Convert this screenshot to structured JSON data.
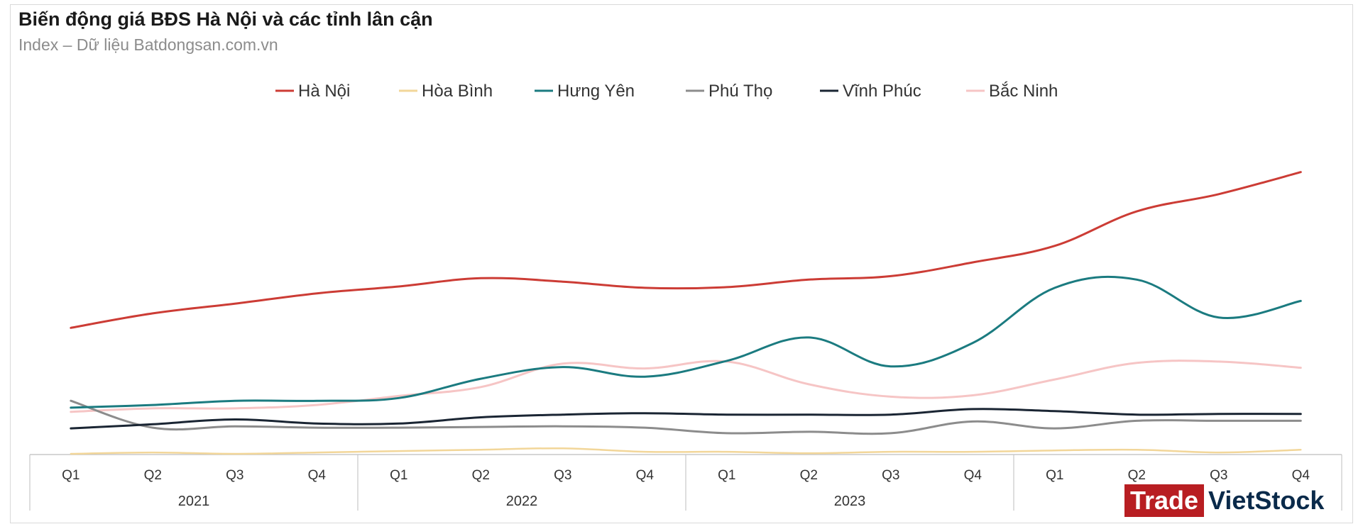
{
  "header": {
    "title": "Biến động giá BĐS Hà Nội và các tỉnh lân cận",
    "subtitle": "Index – Dữ liệu Batdongsan.com.vn"
  },
  "logo": {
    "part1": "Trade",
    "part2": "VietStock"
  },
  "chart_data": {
    "type": "line",
    "title": "Biến động giá BĐS Hà Nội và các tỉnh lân cận",
    "subtitle": "Index – Dữ liệu Batdongsan.com.vn",
    "legend_position": "top",
    "grid": false,
    "categories": [
      "Q1",
      "Q2",
      "Q3",
      "Q4",
      "Q1",
      "Q2",
      "Q3",
      "Q4",
      "Q1",
      "Q2",
      "Q3",
      "Q4",
      "Q1",
      "Q2",
      "Q3",
      "Q4"
    ],
    "years": [
      "2021",
      "2022",
      "2023"
    ],
    "ylim": [
      0,
      420
    ],
    "series": [
      {
        "name": "Hà Nội",
        "color": "#cc3c35",
        "values": [
          184,
          205,
          219,
          234,
          244,
          256,
          251,
          242,
          243,
          254,
          259,
          279,
          303,
          353,
          378,
          410
        ]
      },
      {
        "name": "Hòa Bình",
        "color": "#f2d699",
        "values": [
          1,
          3,
          1,
          3,
          5,
          7,
          9,
          4,
          4,
          2,
          4,
          4,
          6,
          7,
          3,
          7
        ]
      },
      {
        "name": "Hưng Yên",
        "color": "#1b7b80",
        "values": [
          68,
          72,
          78,
          78,
          82,
          110,
          127,
          113,
          136,
          170,
          128,
          162,
          242,
          254,
          199,
          223
        ]
      },
      {
        "name": "Phú Thọ",
        "color": "#8c8c8c",
        "values": [
          78,
          39,
          41,
          39,
          39,
          40,
          41,
          39,
          31,
          33,
          31,
          48,
          38,
          49,
          49,
          49
        ]
      },
      {
        "name": "Vĩnh Phúc",
        "color": "#1a2533",
        "values": [
          38,
          44,
          51,
          45,
          45,
          54,
          58,
          60,
          58,
          58,
          58,
          66,
          63,
          58,
          59,
          59
        ]
      },
      {
        "name": "Bắc Ninh",
        "color": "#f6c5c5",
        "values": [
          62,
          67,
          67,
          72,
          85,
          98,
          132,
          125,
          135,
          102,
          84,
          86,
          109,
          133,
          135,
          126
        ]
      }
    ]
  }
}
